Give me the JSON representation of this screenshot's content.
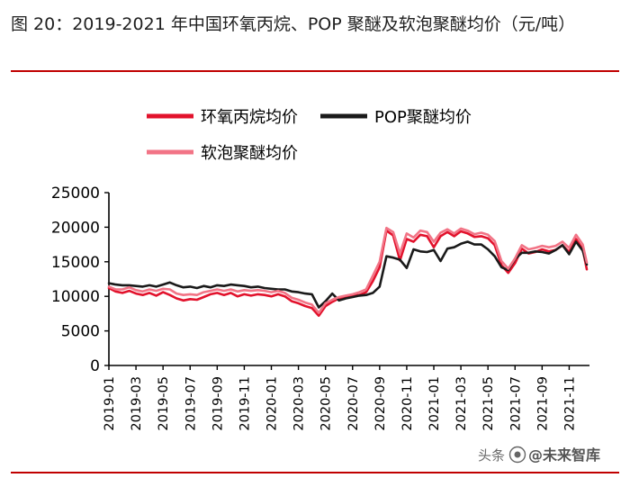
{
  "figure": {
    "title": "图 20：2019-2021 年中国环氧丙烷、POP 聚醚及软泡聚醚均价（元/吨）"
  },
  "watermark": {
    "prefix": "头条",
    "handle": "@未来智库"
  },
  "colors": {
    "propylene_oxide": "#e2122c",
    "pop_polyether": "#1a1a1a",
    "flexible_foam_polyether": "#f27486",
    "accent_rule": "#c00000"
  },
  "chart_data": {
    "type": "line",
    "title": "",
    "xlabel": "",
    "ylabel": "",
    "ylim": [
      0,
      25000
    ],
    "yticks": [
      0,
      5000,
      10000,
      15000,
      20000,
      25000
    ],
    "x_tick_labels": [
      "2019-01",
      "2019-03",
      "2019-05",
      "2019-07",
      "2019-09",
      "2019-11",
      "2020-01",
      "2020-03",
      "2020-05",
      "2020-07",
      "2020-09",
      "2020-11",
      "2021-01",
      "2021-03",
      "2021-05",
      "2021-07",
      "2021-09",
      "2021-11"
    ],
    "x_range": [
      0,
      35.5
    ],
    "legend": [
      "环氧丙烷均价",
      "POP聚醚均价",
      "软泡聚醚均价"
    ],
    "legend_position": "top",
    "grid": false,
    "series": [
      {
        "name": "环氧丙烷均价",
        "color": "#e2122c",
        "x": [
          0,
          0.5,
          1,
          1.5,
          2,
          2.5,
          3,
          3.5,
          4,
          4.5,
          5,
          5.5,
          6,
          6.5,
          7,
          7.5,
          8,
          8.5,
          9,
          9.5,
          10,
          10.5,
          11,
          11.5,
          12,
          12.5,
          13,
          13.5,
          14,
          14.5,
          15,
          15.5,
          16,
          16.5,
          17,
          17.5,
          18,
          18.5,
          19,
          19.5,
          20,
          20.5,
          21,
          21.5,
          22,
          22.5,
          23,
          23.5,
          24,
          24.5,
          25,
          25.5,
          26,
          26.5,
          27,
          27.5,
          28,
          28.5,
          29,
          29.5,
          30,
          30.5,
          31,
          31.5,
          32,
          32.5,
          33,
          33.5,
          34,
          34.5,
          35,
          35.3
        ],
        "values": [
          11200,
          10700,
          10500,
          10800,
          10400,
          10200,
          10500,
          10100,
          10600,
          10200,
          9700,
          9400,
          9600,
          9500,
          9900,
          10300,
          10500,
          10200,
          10500,
          10000,
          10300,
          10100,
          10300,
          10200,
          10000,
          10300,
          10000,
          9300,
          9000,
          8600,
          8300,
          7200,
          8600,
          9200,
          9700,
          9900,
          10100,
          10200,
          10600,
          12200,
          14200,
          19500,
          18800,
          15200,
          18300,
          17900,
          18900,
          18700,
          17100,
          18700,
          19300,
          18700,
          19400,
          19100,
          18600,
          18700,
          18400,
          17400,
          14500,
          13400,
          14800,
          16900,
          16200,
          16400,
          16800,
          16500,
          16700,
          17400,
          16400,
          18300,
          16800,
          13900
        ]
      },
      {
        "name": "POP聚醚均价",
        "color": "#1a1a1a",
        "x": [
          0,
          0.5,
          1,
          1.5,
          2,
          2.5,
          3,
          3.5,
          4,
          4.5,
          5,
          5.5,
          6,
          6.5,
          7,
          7.5,
          8,
          8.5,
          9,
          9.5,
          10,
          10.5,
          11,
          11.5,
          12,
          12.5,
          13,
          13.5,
          14,
          14.5,
          15,
          15.5,
          16,
          16.5,
          17,
          17.5,
          18,
          18.5,
          19,
          19.5,
          20,
          20.5,
          21,
          21.5,
          22,
          22.5,
          23,
          23.5,
          24,
          24.5,
          25,
          25.5,
          26,
          26.5,
          27,
          27.5,
          28,
          28.5,
          29,
          29.5,
          30,
          30.5,
          31,
          31.5,
          32,
          32.5,
          33,
          33.5,
          34,
          34.5,
          35,
          35.3
        ],
        "values": [
          11900,
          11700,
          11600,
          11600,
          11500,
          11400,
          11600,
          11400,
          11700,
          12000,
          11600,
          11300,
          11400,
          11200,
          11500,
          11300,
          11600,
          11500,
          11700,
          11600,
          11500,
          11300,
          11400,
          11200,
          11100,
          11000,
          11000,
          10700,
          10600,
          10400,
          10300,
          8400,
          9300,
          10400,
          9400,
          9700,
          9900,
          10100,
          10200,
          10500,
          11400,
          15800,
          15600,
          15300,
          14100,
          16800,
          16500,
          16400,
          16700,
          15100,
          16900,
          17100,
          17600,
          17900,
          17500,
          17500,
          16800,
          15800,
          14200,
          13800,
          15400,
          16300,
          16300,
          16500,
          16400,
          16200,
          16700,
          17400,
          16100,
          17900,
          16600,
          14600
        ]
      },
      {
        "name": "软泡聚醚均价",
        "color": "#f27486",
        "x": [
          0,
          0.5,
          1,
          1.5,
          2,
          2.5,
          3,
          3.5,
          4,
          4.5,
          5,
          5.5,
          6,
          6.5,
          7,
          7.5,
          8,
          8.5,
          9,
          9.5,
          10,
          10.5,
          11,
          11.5,
          12,
          12.5,
          13,
          13.5,
          14,
          14.5,
          15,
          15.5,
          16,
          16.5,
          17,
          17.5,
          18,
          18.5,
          19,
          19.5,
          20,
          20.5,
          21,
          21.5,
          22,
          22.5,
          23,
          23.5,
          24,
          24.5,
          25,
          25.5,
          26,
          26.5,
          27,
          27.5,
          28,
          28.5,
          29,
          29.5,
          30,
          30.5,
          31,
          31.5,
          32,
          32.5,
          33,
          33.5,
          34,
          34.5,
          35,
          35.3
        ],
        "values": [
          11400,
          11000,
          11000,
          11300,
          10900,
          10700,
          11000,
          10800,
          11100,
          11000,
          10400,
          10200,
          10300,
          10200,
          10600,
          10800,
          11000,
          10800,
          11000,
          10700,
          10900,
          10800,
          10900,
          10800,
          10600,
          10800,
          10500,
          9800,
          9500,
          9100,
          8800,
          7600,
          9000,
          9500,
          9900,
          10100,
          10300,
          10600,
          11000,
          13000,
          15000,
          19900,
          19300,
          16200,
          19100,
          18500,
          19500,
          19300,
          17900,
          19200,
          19700,
          19100,
          19800,
          19500,
          19000,
          19200,
          18900,
          18000,
          15100,
          14000,
          15500,
          17400,
          16800,
          17000,
          17300,
          17100,
          17300,
          17900,
          17000,
          18900,
          17500,
          14900
        ]
      }
    ]
  }
}
